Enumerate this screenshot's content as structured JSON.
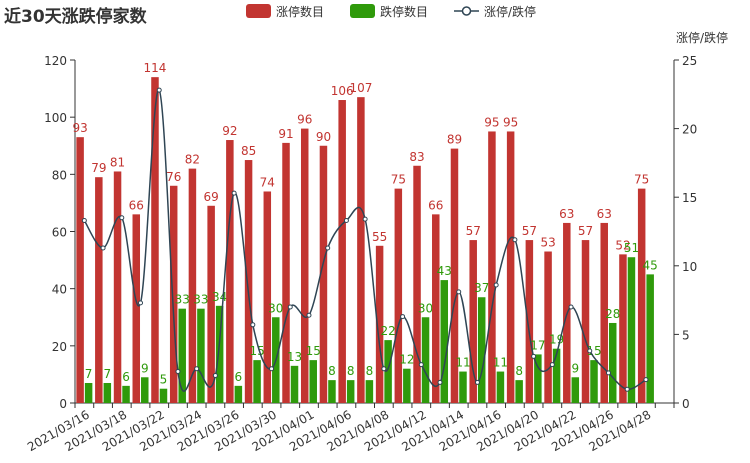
{
  "title": "近30天涨跌停家数",
  "chart_data": {
    "type": "bar",
    "title": "近30天涨跌停家数",
    "categories": [
      "2021/03/16",
      "2021/03/17",
      "2021/03/18",
      "2021/03/19",
      "2021/03/22",
      "2021/03/23",
      "2021/03/24",
      "2021/03/25",
      "2021/03/26",
      "2021/03/29",
      "2021/03/30",
      "2021/03/31",
      "2021/04/01",
      "2021/04/02",
      "2021/04/06",
      "2021/04/07",
      "2021/04/08",
      "2021/04/09",
      "2021/04/12",
      "2021/04/13",
      "2021/04/14",
      "2021/04/15",
      "2021/04/16",
      "2021/04/19",
      "2021/04/20",
      "2021/04/21",
      "2021/04/22",
      "2021/04/23",
      "2021/04/26",
      "2021/04/27",
      "2021/04/28",
      "2021/04/29"
    ],
    "x_tick_labels": [
      "2021/03/16",
      "2021/03/18",
      "2021/03/22",
      "2021/03/24",
      "2021/03/26",
      "2021/03/30",
      "2021/04/01",
      "2021/04/06",
      "2021/04/08",
      "2021/04/12",
      "2021/04/14",
      "2021/04/16",
      "2021/04/20",
      "2021/04/22",
      "2021/04/26",
      "2021/04/28"
    ],
    "series": [
      {
        "name": "涨停数目",
        "type": "bar",
        "color": "#c23531",
        "values": [
          93,
          79,
          81,
          66,
          114,
          76,
          82,
          69,
          92,
          85,
          74,
          91,
          96,
          90,
          106,
          107,
          55,
          75,
          83,
          66,
          89,
          57,
          95,
          95,
          57,
          53,
          63,
          57,
          63,
          52,
          75,
          0
        ]
      },
      {
        "name": "跌停数目",
        "type": "bar",
        "color": "#2f9a0b",
        "values": [
          7,
          7,
          6,
          9,
          5,
          33,
          33,
          34,
          6,
          15,
          30,
          13,
          15,
          8,
          8,
          8,
          22,
          12,
          30,
          43,
          11,
          37,
          11,
          8,
          17,
          19,
          9,
          15,
          28,
          51,
          45,
          0
        ]
      },
      {
        "name": "涨停/跌停",
        "type": "line",
        "color": "#2f4554",
        "smooth": true,
        "values": [
          13.3,
          11.3,
          13.5,
          7.3,
          22.8,
          2.3,
          2.5,
          2.0,
          15.3,
          5.7,
          2.5,
          7.0,
          6.4,
          11.3,
          13.3,
          13.4,
          2.5,
          6.3,
          2.8,
          1.5,
          8.1,
          1.5,
          8.6,
          11.9,
          3.4,
          2.8,
          7.0,
          3.8,
          2.2,
          1.0,
          1.7,
          0
        ]
      }
    ],
    "y_left": {
      "min": 0,
      "max": 120,
      "ticks": [
        0,
        20,
        40,
        60,
        80,
        100,
        120
      ]
    },
    "y_right": {
      "name": "涨停/跌停",
      "min": 0,
      "max": 25,
      "ticks": [
        0,
        5,
        10,
        15,
        20,
        25
      ]
    },
    "legend_position": "top-center",
    "grid": false
  }
}
